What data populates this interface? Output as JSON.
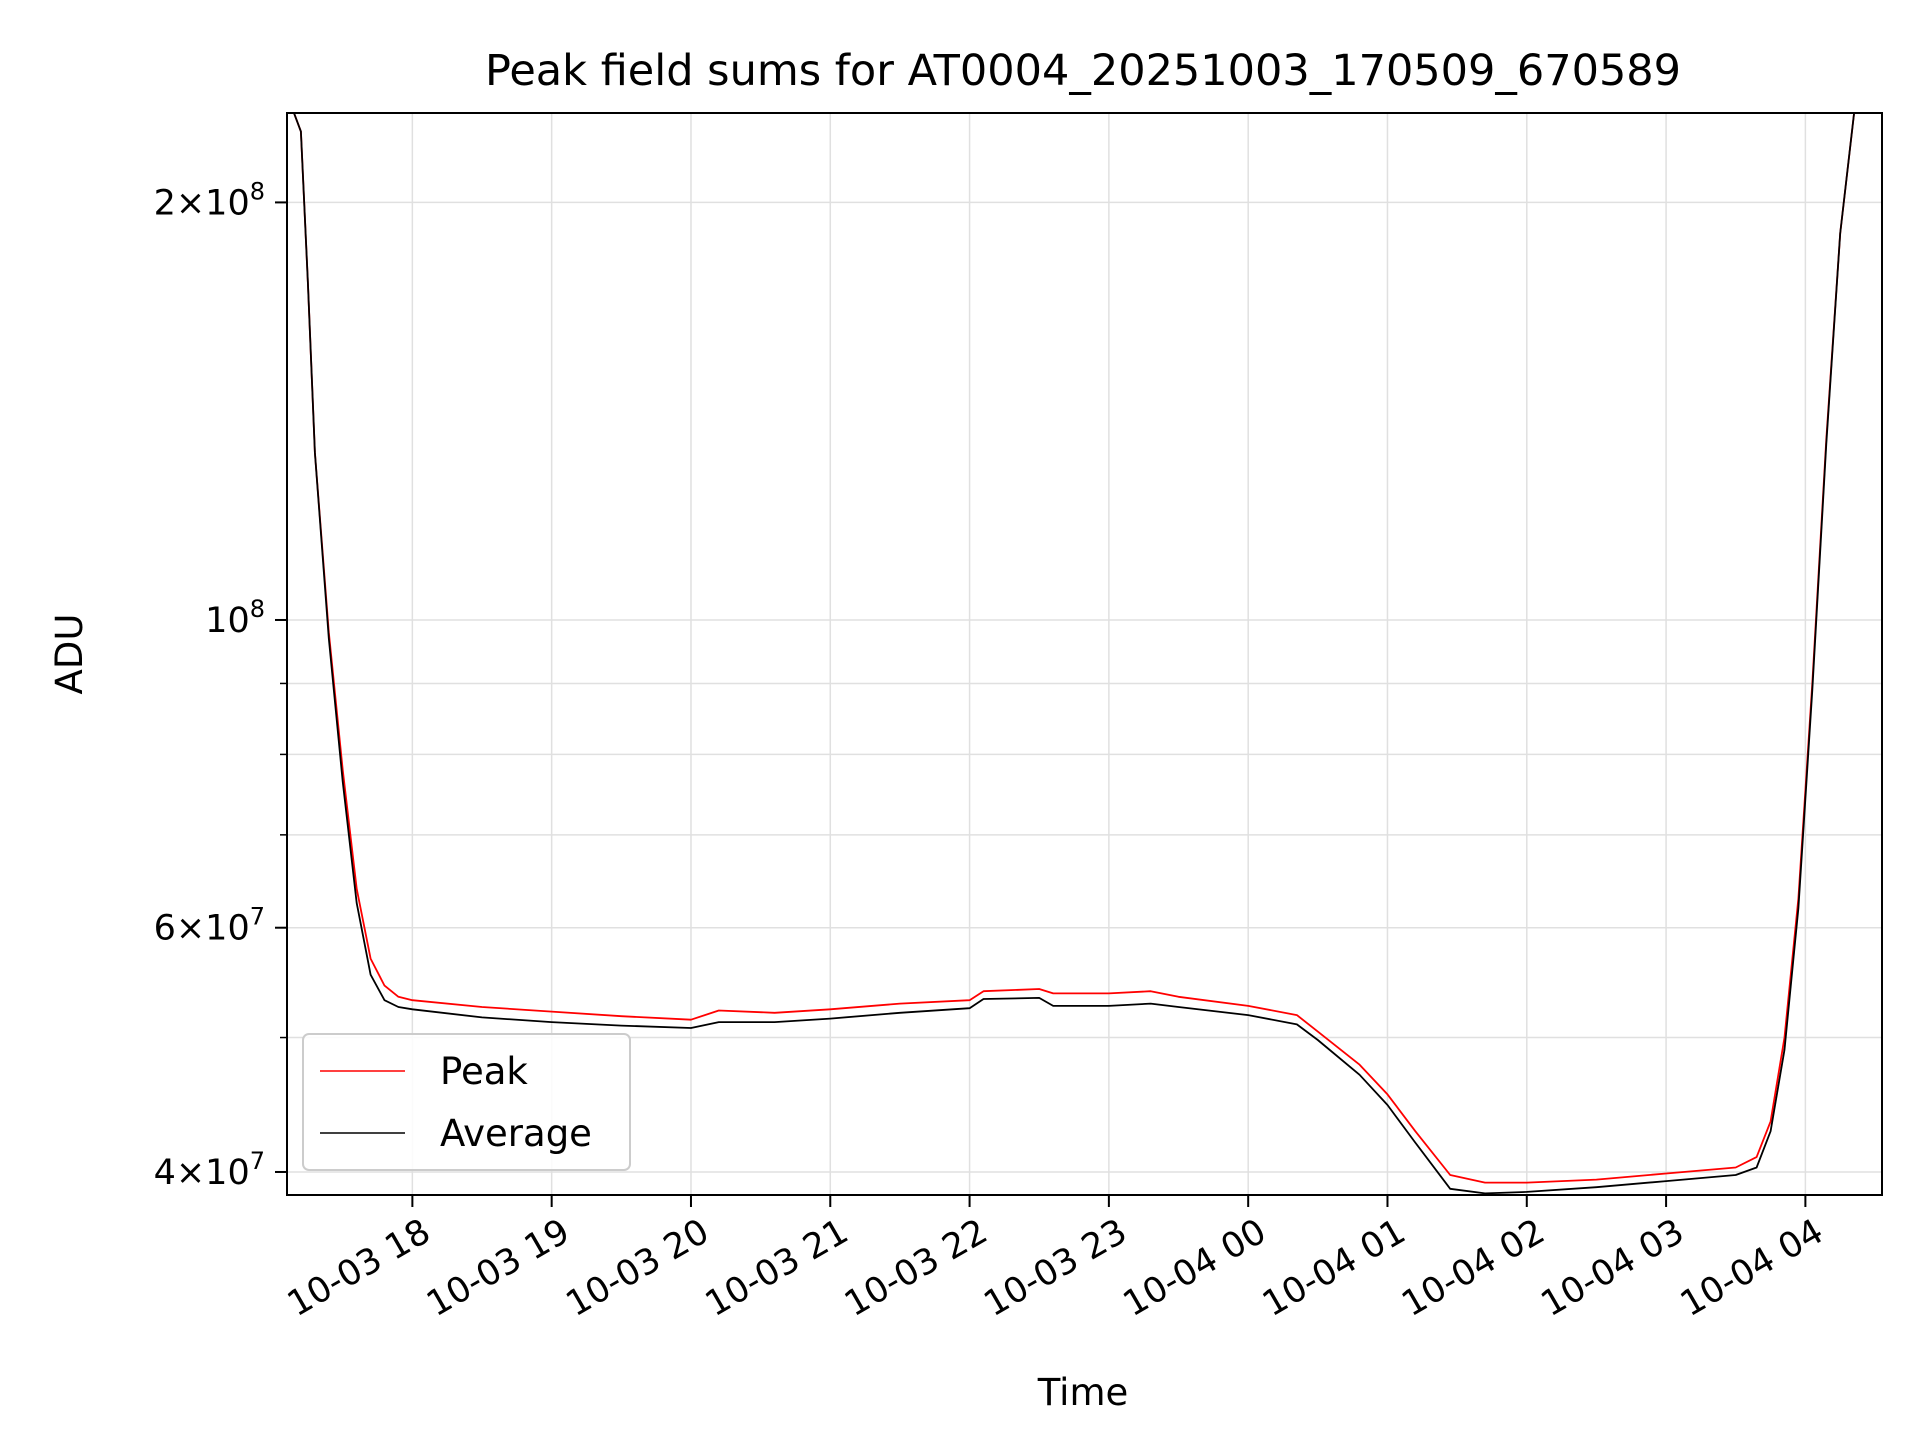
{
  "chart_data": {
    "type": "line",
    "title": "Peak field sums for AT0004_20251003_170509_670589",
    "xlabel": "Time",
    "ylabel": "ADU",
    "yscale": "log",
    "xlim_hours": [
      -0.9,
      10.55
    ],
    "ylim": [
      38500000,
      232000000
    ],
    "grid": true,
    "legend_location": "lower left",
    "x_ticks": [
      {
        "label": "10-03 18",
        "hour": 0
      },
      {
        "label": "10-03 19",
        "hour": 1
      },
      {
        "label": "10-03 20",
        "hour": 2
      },
      {
        "label": "10-03 21",
        "hour": 3
      },
      {
        "label": "10-03 22",
        "hour": 4
      },
      {
        "label": "10-03 23",
        "hour": 5
      },
      {
        "label": "10-04 00",
        "hour": 6
      },
      {
        "label": "10-04 01",
        "hour": 7
      },
      {
        "label": "10-04 02",
        "hour": 8
      },
      {
        "label": "10-04 03",
        "hour": 9
      },
      {
        "label": "10-04 04",
        "hour": 10
      }
    ],
    "y_major_ticks": [
      {
        "value": 40000000,
        "mant": "4",
        "exp": "7"
      },
      {
        "value": 60000000,
        "mant": "6",
        "exp": "7"
      },
      {
        "value": 100000000,
        "mant": "",
        "exp": "8"
      },
      {
        "value": 200000000,
        "mant": "2",
        "exp": "8"
      }
    ],
    "y_minor_ticks": [
      50000000,
      70000000,
      80000000,
      90000000
    ],
    "series": [
      {
        "name": "Peak",
        "color": "#ff0000",
        "hours": [
          -0.85,
          -0.8,
          -0.75,
          -0.7,
          -0.6,
          -0.5,
          -0.4,
          -0.3,
          -0.2,
          -0.1,
          0.0,
          0.5,
          1.0,
          1.5,
          2.0,
          2.2,
          2.6,
          3.0,
          3.5,
          4.0,
          4.1,
          4.5,
          4.6,
          5.0,
          5.3,
          5.5,
          6.0,
          6.35,
          6.5,
          6.8,
          7.0,
          7.2,
          7.45,
          7.7,
          8.0,
          8.5,
          9.0,
          9.5,
          9.65,
          9.75,
          9.85,
          9.95,
          10.05,
          10.15,
          10.25,
          10.35,
          10.55
        ],
        "values": [
          232000000,
          225000000,
          175000000,
          132000000,
          98000000,
          78000000,
          64000000,
          57000000,
          54500000,
          53500000,
          53200000,
          52600000,
          52200000,
          51800000,
          51500000,
          52300000,
          52100000,
          52400000,
          52900000,
          53200000,
          54000000,
          54200000,
          53800000,
          53800000,
          54000000,
          53500000,
          52700000,
          51900000,
          50500000,
          47800000,
          45500000,
          42800000,
          39800000,
          39300000,
          39300000,
          39500000,
          39900000,
          40300000,
          41000000,
          43500000,
          50000000,
          63000000,
          90000000,
          135000000,
          190000000,
          232000000,
          232000000
        ]
      },
      {
        "name": "Average",
        "color": "#000000",
        "hours": [
          -0.85,
          -0.8,
          -0.75,
          -0.7,
          -0.6,
          -0.5,
          -0.4,
          -0.3,
          -0.2,
          -0.1,
          0.0,
          0.5,
          1.0,
          1.5,
          2.0,
          2.2,
          2.6,
          3.0,
          3.5,
          4.0,
          4.1,
          4.5,
          4.6,
          5.0,
          5.3,
          5.5,
          6.0,
          6.35,
          6.5,
          6.8,
          7.0,
          7.2,
          7.45,
          7.7,
          8.0,
          8.5,
          9.0,
          9.5,
          9.65,
          9.75,
          9.85,
          9.95,
          10.05,
          10.15,
          10.25,
          10.35,
          10.55
        ],
        "values": [
          232000000,
          225000000,
          175000000,
          132000000,
          97000000,
          76500000,
          62500000,
          55500000,
          53200000,
          52600000,
          52400000,
          51700000,
          51300000,
          51000000,
          50800000,
          51300000,
          51300000,
          51600000,
          52100000,
          52500000,
          53300000,
          53400000,
          52700000,
          52700000,
          52900000,
          52600000,
          51900000,
          51100000,
          49800000,
          47000000,
          44700000,
          42000000,
          38900000,
          38600000,
          38700000,
          39000000,
          39400000,
          39800000,
          40300000,
          42800000,
          49000000,
          62000000,
          89000000,
          134000000,
          190000000,
          232000000,
          232000000
        ]
      }
    ]
  }
}
